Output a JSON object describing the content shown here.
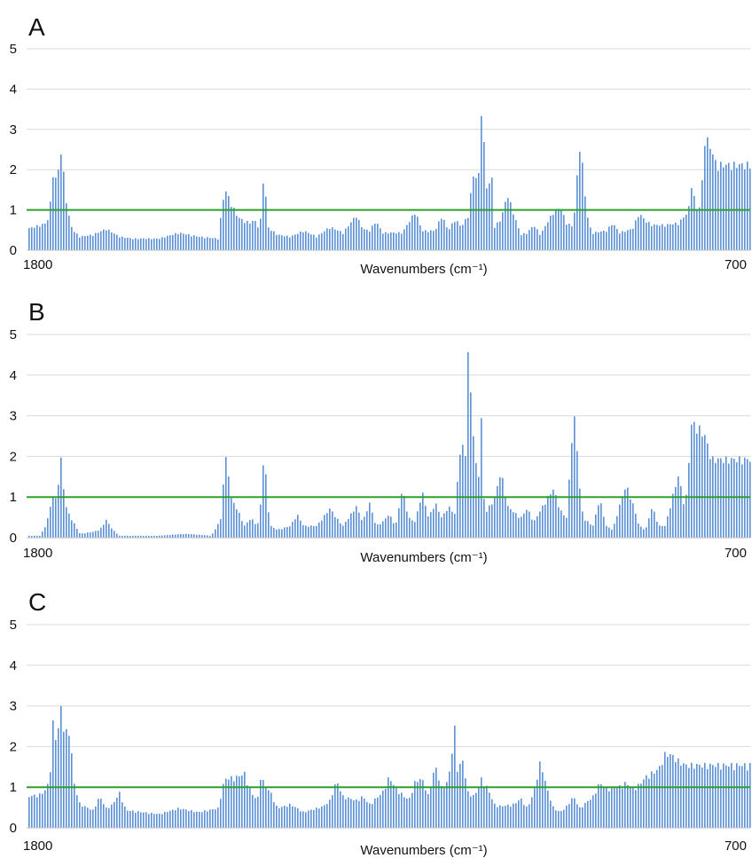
{
  "colors": {
    "bar": "#5b8fd6",
    "threshold": "#2ca02c",
    "grid": "#d9d9d9"
  },
  "chart_data": [
    {
      "type": "bar",
      "panel_label": "A",
      "xlabel": "Wavenumbers (cm⁻¹)",
      "x_left_label": "1800",
      "x_right_label": "700",
      "xlim": [
        1800,
        700
      ],
      "ylim": [
        0,
        5
      ],
      "yticks": [
        "0",
        "1",
        "2",
        "3",
        "4",
        "5"
      ],
      "grid": true,
      "threshold": 1,
      "profile": [
        [
          1800,
          0.55
        ],
        [
          1790,
          0.6
        ],
        [
          1780,
          0.65
        ],
        [
          1770,
          0.7
        ],
        [
          1765,
          1.2
        ],
        [
          1760,
          2.2
        ],
        [
          1755,
          1.6
        ],
        [
          1750,
          2.7
        ],
        [
          1745,
          2.0
        ],
        [
          1740,
          1.2
        ],
        [
          1735,
          0.7
        ],
        [
          1730,
          0.5
        ],
        [
          1720,
          0.35
        ],
        [
          1700,
          0.4
        ],
        [
          1680,
          0.55
        ],
        [
          1660,
          0.35
        ],
        [
          1640,
          0.3
        ],
        [
          1600,
          0.3
        ],
        [
          1570,
          0.45
        ],
        [
          1540,
          0.35
        ],
        [
          1510,
          0.3
        ],
        [
          1500,
          1.6
        ],
        [
          1490,
          1.2
        ],
        [
          1480,
          0.85
        ],
        [
          1470,
          0.75
        ],
        [
          1460,
          0.7
        ],
        [
          1455,
          0.8
        ],
        [
          1450,
          0.6
        ],
        [
          1445,
          0.8
        ],
        [
          1440,
          2.2
        ],
        [
          1435,
          0.6
        ],
        [
          1420,
          0.4
        ],
        [
          1400,
          0.35
        ],
        [
          1380,
          0.5
        ],
        [
          1360,
          0.35
        ],
        [
          1340,
          0.6
        ],
        [
          1320,
          0.45
        ],
        [
          1300,
          0.9
        ],
        [
          1290,
          0.55
        ],
        [
          1280,
          0.5
        ],
        [
          1270,
          0.75
        ],
        [
          1260,
          0.45
        ],
        [
          1230,
          0.45
        ],
        [
          1210,
          1.0
        ],
        [
          1200,
          0.5
        ],
        [
          1180,
          0.5
        ],
        [
          1170,
          0.9
        ],
        [
          1160,
          0.5
        ],
        [
          1150,
          0.8
        ],
        [
          1140,
          0.6
        ],
        [
          1130,
          0.9
        ],
        [
          1120,
          2.2
        ],
        [
          1115,
          1.4
        ],
        [
          1110,
          3.75
        ],
        [
          1105,
          2.5
        ],
        [
          1100,
          1.2
        ],
        [
          1095,
          2.3
        ],
        [
          1090,
          0.6
        ],
        [
          1080,
          0.8
        ],
        [
          1070,
          1.45
        ],
        [
          1060,
          0.9
        ],
        [
          1050,
          0.4
        ],
        [
          1040,
          0.45
        ],
        [
          1030,
          0.65
        ],
        [
          1020,
          0.4
        ],
        [
          1000,
          1.0
        ],
        [
          990,
          1.1
        ],
        [
          980,
          0.7
        ],
        [
          970,
          0.6
        ],
        [
          960,
          2.8
        ],
        [
          955,
          2.0
        ],
        [
          950,
          1.0
        ],
        [
          945,
          0.6
        ],
        [
          940,
          0.45
        ],
        [
          920,
          0.5
        ],
        [
          910,
          0.7
        ],
        [
          900,
          0.45
        ],
        [
          880,
          0.55
        ],
        [
          870,
          0.95
        ],
        [
          860,
          0.75
        ],
        [
          850,
          0.65
        ],
        [
          830,
          0.65
        ],
        [
          810,
          0.7
        ],
        [
          795,
          1.0
        ],
        [
          790,
          1.8
        ],
        [
          785,
          1.2
        ],
        [
          780,
          0.9
        ],
        [
          775,
          1.5
        ],
        [
          770,
          2.95
        ],
        [
          760,
          2.6
        ],
        [
          755,
          2.3
        ],
        [
          752,
          2.2
        ]
      ]
    },
    {
      "type": "bar",
      "panel_label": "B",
      "xlabel": "Wavenumbers (cm⁻¹)",
      "x_left_label": "1800",
      "x_right_label": "700",
      "xlim": [
        1800,
        700
      ],
      "ylim": [
        0,
        5
      ],
      "yticks": [
        "0",
        "1",
        "2",
        "3",
        "4",
        "5"
      ],
      "grid": true,
      "threshold": 1,
      "profile": [
        [
          1800,
          0.05
        ],
        [
          1780,
          0.05
        ],
        [
          1770,
          0.4
        ],
        [
          1765,
          0.8
        ],
        [
          1760,
          1.1
        ],
        [
          1755,
          0.9
        ],
        [
          1750,
          2.2
        ],
        [
          1745,
          1.3
        ],
        [
          1740,
          0.7
        ],
        [
          1730,
          0.4
        ],
        [
          1720,
          0.1
        ],
        [
          1700,
          0.15
        ],
        [
          1690,
          0.2
        ],
        [
          1680,
          0.45
        ],
        [
          1670,
          0.2
        ],
        [
          1660,
          0.05
        ],
        [
          1600,
          0.05
        ],
        [
          1560,
          0.1
        ],
        [
          1520,
          0.05
        ],
        [
          1505,
          0.5
        ],
        [
          1500,
          2.1
        ],
        [
          1495,
          1.8
        ],
        [
          1490,
          1.0
        ],
        [
          1480,
          0.7
        ],
        [
          1470,
          0.3
        ],
        [
          1460,
          0.5
        ],
        [
          1450,
          0.3
        ],
        [
          1445,
          0.9
        ],
        [
          1440,
          2.3
        ],
        [
          1435,
          0.9
        ],
        [
          1430,
          0.3
        ],
        [
          1420,
          0.2
        ],
        [
          1400,
          0.3
        ],
        [
          1390,
          0.6
        ],
        [
          1380,
          0.3
        ],
        [
          1360,
          0.3
        ],
        [
          1340,
          0.75
        ],
        [
          1330,
          0.5
        ],
        [
          1320,
          0.3
        ],
        [
          1300,
          0.8
        ],
        [
          1290,
          0.4
        ],
        [
          1280,
          0.9
        ],
        [
          1270,
          0.3
        ],
        [
          1260,
          0.4
        ],
        [
          1250,
          0.6
        ],
        [
          1240,
          0.3
        ],
        [
          1230,
          1.25
        ],
        [
          1220,
          0.5
        ],
        [
          1210,
          0.4
        ],
        [
          1200,
          1.2
        ],
        [
          1190,
          0.5
        ],
        [
          1180,
          0.9
        ],
        [
          1170,
          0.5
        ],
        [
          1160,
          0.8
        ],
        [
          1150,
          0.6
        ],
        [
          1140,
          2.7
        ],
        [
          1135,
          1.6
        ],
        [
          1130,
          4.7
        ],
        [
          1125,
          3.4
        ],
        [
          1115,
          1.2
        ],
        [
          1110,
          3.1
        ],
        [
          1105,
          0.6
        ],
        [
          1090,
          1.0
        ],
        [
          1080,
          1.7
        ],
        [
          1070,
          0.8
        ],
        [
          1050,
          0.5
        ],
        [
          1040,
          0.75
        ],
        [
          1030,
          0.4
        ],
        [
          1010,
          1.0
        ],
        [
          1000,
          1.25
        ],
        [
          990,
          0.7
        ],
        [
          980,
          0.5
        ],
        [
          975,
          1.8
        ],
        [
          970,
          3.25
        ],
        [
          965,
          2.5
        ],
        [
          960,
          1.2
        ],
        [
          955,
          0.5
        ],
        [
          940,
          0.3
        ],
        [
          930,
          1.0
        ],
        [
          920,
          0.3
        ],
        [
          910,
          0.2
        ],
        [
          900,
          0.8
        ],
        [
          890,
          1.35
        ],
        [
          880,
          0.9
        ],
        [
          870,
          0.3
        ],
        [
          860,
          0.2
        ],
        [
          850,
          0.8
        ],
        [
          840,
          0.3
        ],
        [
          830,
          0.3
        ],
        [
          820,
          1.0
        ],
        [
          810,
          1.6
        ],
        [
          800,
          0.7
        ],
        [
          790,
          2.95
        ],
        [
          780,
          2.8
        ],
        [
          770,
          2.6
        ],
        [
          760,
          2.0
        ],
        [
          752,
          2.0
        ]
      ]
    },
    {
      "type": "bar",
      "panel_label": "C",
      "xlabel": "Wavenumbers (cm⁻¹)",
      "x_left_label": "1800",
      "x_right_label": "700",
      "xlim": [
        1800,
        700
      ],
      "ylim": [
        0,
        5
      ],
      "yticks": [
        "0",
        "1",
        "2",
        "3",
        "4",
        "5"
      ],
      "grid": true,
      "threshold": 1,
      "profile": [
        [
          1800,
          0.8
        ],
        [
          1780,
          0.85
        ],
        [
          1770,
          1.0
        ],
        [
          1765,
          1.5
        ],
        [
          1760,
          2.9
        ],
        [
          1755,
          2.0
        ],
        [
          1750,
          3.2
        ],
        [
          1745,
          2.6
        ],
        [
          1740,
          2.4
        ],
        [
          1735,
          2.5
        ],
        [
          1730,
          1.2
        ],
        [
          1720,
          0.6
        ],
        [
          1700,
          0.45
        ],
        [
          1690,
          0.8
        ],
        [
          1680,
          0.5
        ],
        [
          1670,
          0.6
        ],
        [
          1660,
          0.9
        ],
        [
          1650,
          0.45
        ],
        [
          1600,
          0.35
        ],
        [
          1570,
          0.5
        ],
        [
          1540,
          0.4
        ],
        [
          1510,
          0.5
        ],
        [
          1500,
          1.25
        ],
        [
          1480,
          1.3
        ],
        [
          1470,
          1.4
        ],
        [
          1460,
          0.9
        ],
        [
          1450,
          0.7
        ],
        [
          1445,
          1.4
        ],
        [
          1440,
          1.1
        ],
        [
          1430,
          0.9
        ],
        [
          1420,
          0.5
        ],
        [
          1400,
          0.6
        ],
        [
          1380,
          0.4
        ],
        [
          1350,
          0.55
        ],
        [
          1340,
          0.7
        ],
        [
          1330,
          1.2
        ],
        [
          1320,
          0.8
        ],
        [
          1300,
          0.7
        ],
        [
          1290,
          0.8
        ],
        [
          1280,
          0.6
        ],
        [
          1260,
          0.9
        ],
        [
          1250,
          1.3
        ],
        [
          1240,
          1.0
        ],
        [
          1220,
          0.7
        ],
        [
          1210,
          1.2
        ],
        [
          1200,
          1.25
        ],
        [
          1190,
          0.8
        ],
        [
          1180,
          1.6
        ],
        [
          1170,
          1.0
        ],
        [
          1160,
          1.2
        ],
        [
          1150,
          2.55
        ],
        [
          1145,
          1.2
        ],
        [
          1140,
          1.9
        ],
        [
          1130,
          0.9
        ],
        [
          1120,
          0.8
        ],
        [
          1110,
          1.25
        ],
        [
          1100,
          1.0
        ],
        [
          1090,
          0.6
        ],
        [
          1080,
          0.55
        ],
        [
          1060,
          0.6
        ],
        [
          1050,
          0.75
        ],
        [
          1040,
          0.5
        ],
        [
          1030,
          0.9
        ],
        [
          1020,
          1.7
        ],
        [
          1010,
          1.0
        ],
        [
          1000,
          0.5
        ],
        [
          990,
          0.4
        ],
        [
          980,
          0.55
        ],
        [
          970,
          0.8
        ],
        [
          960,
          0.5
        ],
        [
          940,
          0.8
        ],
        [
          930,
          1.15
        ],
        [
          920,
          1.0
        ],
        [
          900,
          1.05
        ],
        [
          890,
          1.15
        ],
        [
          880,
          1.0
        ],
        [
          870,
          1.1
        ],
        [
          860,
          1.3
        ],
        [
          850,
          1.4
        ],
        [
          840,
          1.5
        ],
        [
          830,
          1.9
        ],
        [
          820,
          1.85
        ],
        [
          810,
          1.7
        ],
        [
          800,
          1.6
        ],
        [
          752,
          1.6
        ]
      ]
    }
  ]
}
